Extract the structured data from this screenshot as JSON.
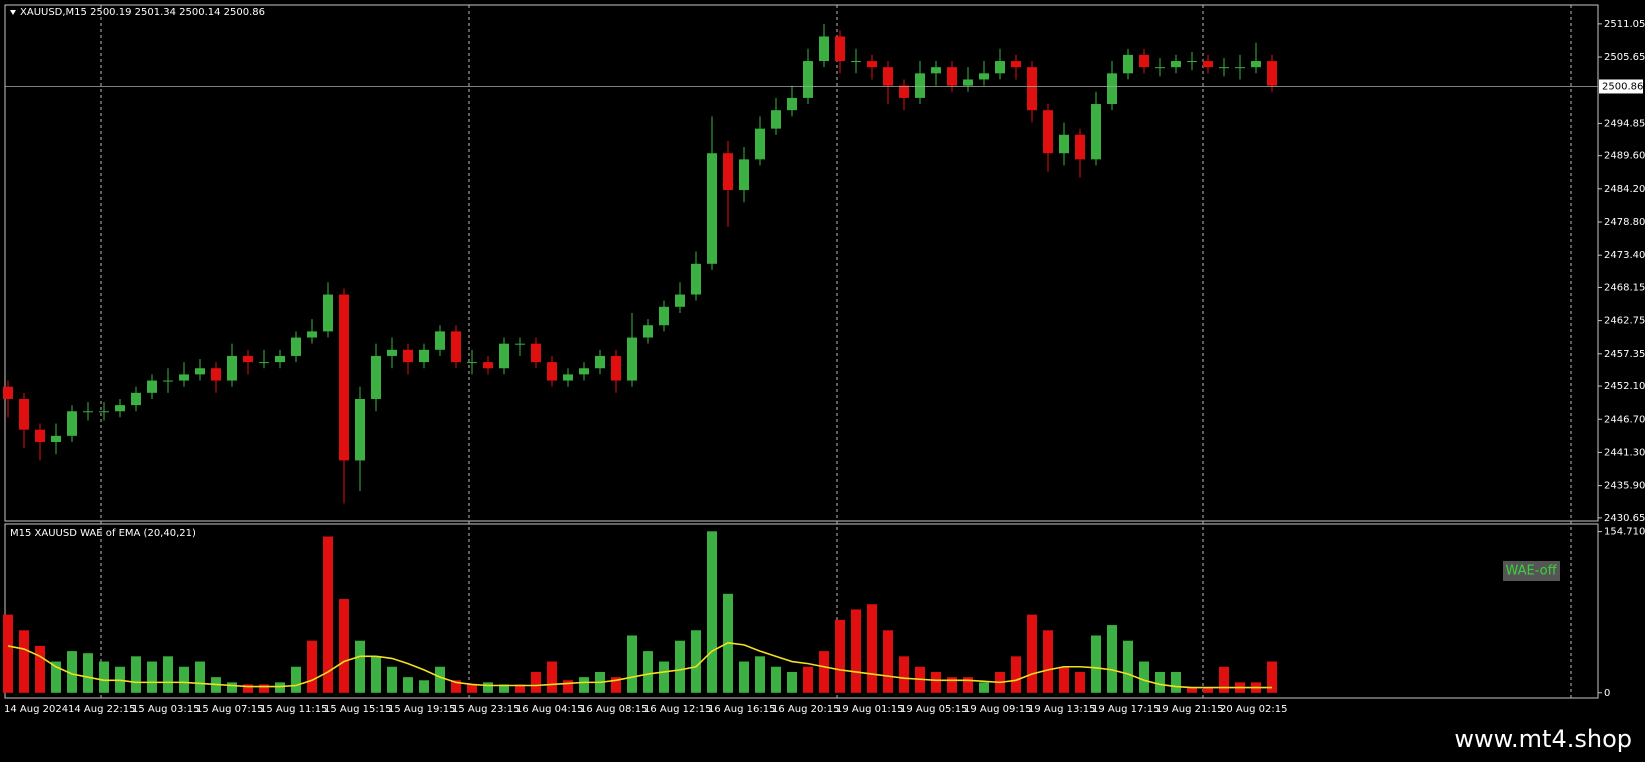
{
  "chart_data": [
    {
      "type": "candlestick",
      "title": "XAUUSD,M15  2500.19 2501.34 2500.14 2500.86",
      "categories": [
        "14 Aug 2024",
        null,
        null,
        null,
        "14 Aug 22:15",
        null,
        null,
        null,
        "15 Aug 03:15",
        null,
        null,
        null,
        "15 Aug 07:15",
        null,
        null,
        null,
        "15 Aug 11:15",
        null,
        null,
        null,
        "15 Aug 15:15",
        null,
        null,
        null,
        "15 Aug 19:15",
        null,
        null,
        null,
        "15 Aug 23:15",
        null,
        null,
        null,
        "16 Aug 04:15",
        null,
        null,
        null,
        "16 Aug 08:15",
        null,
        null,
        null,
        "16 Aug 12:15",
        null,
        null,
        null,
        "16 Aug 16:15",
        null,
        null,
        null,
        "16 Aug 20:15",
        null,
        null,
        null,
        "19 Aug 01:15",
        null,
        null,
        null,
        "19 Aug 05:15",
        null,
        null,
        null,
        "19 Aug 09:15",
        null,
        null,
        null,
        "19 Aug 13:15",
        null,
        null,
        null,
        "19 Aug 17:15",
        null,
        null,
        null,
        "19 Aug 21:15",
        null,
        null,
        null,
        "20 Aug 02:15",
        null,
        null,
        null
      ],
      "open": [
        2452,
        2450,
        2445,
        2443,
        2444,
        2448,
        2448,
        2448,
        2449,
        2451,
        2453,
        2453,
        2454,
        2455,
        2453,
        2457,
        2456,
        2456,
        2457,
        2460,
        2461,
        2467,
        2440,
        2450,
        2457,
        2458,
        2456,
        2458,
        2461,
        2456,
        2456,
        2455,
        2459,
        2459,
        2456,
        2453,
        2454,
        2455,
        2457,
        2453,
        2460,
        2462,
        2465,
        2467,
        2472,
        2490,
        2484,
        2489,
        2494,
        2497,
        2499,
        2505,
        2509,
        2505,
        2505,
        2504,
        2501,
        2499,
        2503,
        2504,
        2501,
        2502,
        2503,
        2505,
        2504,
        2497,
        2490,
        2493,
        2489,
        2498,
        2503,
        2506,
        2504,
        2504,
        2505,
        2505,
        2504,
        2504,
        2504,
        2505
      ],
      "high": [
        2453,
        2451,
        2446,
        2446,
        2449,
        2449.5,
        2449.5,
        2450,
        2452,
        2454,
        2455,
        2456,
        2456.5,
        2456,
        2459,
        2458,
        2458,
        2458,
        2461,
        2463,
        2469,
        2468,
        2452,
        2459,
        2460,
        2459,
        2459,
        2462,
        2462,
        2458,
        2457,
        2460,
        2460,
        2460,
        2457,
        2455,
        2456,
        2458,
        2458,
        2464,
        2463,
        2466,
        2469,
        2474,
        2496,
        2492,
        2491,
        2496,
        2499,
        2501,
        2507,
        2511,
        2510,
        2507,
        2506,
        2505,
        2502,
        2505,
        2505,
        2505,
        2504,
        2505,
        2507,
        2506,
        2505,
        2498,
        2495,
        2494,
        2500,
        2505,
        2507,
        2507,
        2505.5,
        2506,
        2506.5,
        2506,
        2505.5,
        2506,
        2508,
        2506
      ],
      "low": [
        2447,
        2442,
        2440,
        2441,
        2443,
        2446.5,
        2446.5,
        2447,
        2448,
        2450,
        2451,
        2452,
        2453,
        2451,
        2452,
        2454,
        2455,
        2455,
        2456,
        2459,
        2460,
        2433,
        2435,
        2448,
        2455,
        2454,
        2455,
        2457,
        2455,
        2454,
        2454,
        2454,
        2457,
        2455,
        2452,
        2452,
        2453,
        2454,
        2451,
        2452,
        2459,
        2461,
        2464,
        2466,
        2471,
        2478,
        2482,
        2488,
        2493,
        2496,
        2498,
        2504,
        2503,
        2503,
        2502,
        2498,
        2497,
        2498,
        2501,
        2500,
        2500,
        2501,
        2502,
        2502,
        2495,
        2487,
        2488,
        2486,
        2488,
        2497,
        2502,
        2503,
        2502.5,
        2503,
        2503.5,
        2503,
        2502.5,
        2502,
        2503,
        2500
      ],
      "close": [
        2450,
        2445,
        2443,
        2444,
        2448,
        2448,
        2448,
        2449,
        2451,
        2453,
        2453,
        2454,
        2455,
        2453,
        2457,
        2456,
        2456,
        2457,
        2460,
        2461,
        2467,
        2440,
        2450,
        2457,
        2458,
        2456,
        2458,
        2461,
        2456,
        2456,
        2455,
        2459,
        2459,
        2456,
        2453,
        2454,
        2455,
        2457,
        2453,
        2460,
        2462,
        2465,
        2467,
        2472,
        2490,
        2484,
        2489,
        2494,
        2497,
        2499,
        2505,
        2509,
        2505,
        2505,
        2504,
        2501,
        2499,
        2503,
        2504,
        2501,
        2502,
        2503,
        2505,
        2504,
        2497,
        2490,
        2493,
        2489,
        2498,
        2503,
        2506,
        2504,
        2504,
        2505,
        2505,
        2504,
        2504,
        2504,
        2505,
        2501
      ],
      "up_color": "#3cb043",
      "down_color": "#e01010",
      "last_price": 2500.86,
      "ylim": [
        2430.14,
        2514.12
      ],
      "yticks": [
        2511.05,
        2505.65,
        2494.85,
        {
          "value": 2489.6,
          "label": "2489.60"
        },
        {
          "value": 2484.2,
          "label": "2484.20"
        },
        {
          "value": 2478.8,
          "label": "2478.80"
        },
        {
          "value": 2473.4,
          "label": "2473.40"
        },
        2468.15,
        2462.75,
        2457.35,
        {
          "value": 2452.1,
          "label": "2452.10"
        },
        {
          "value": 2446.7,
          "label": "2446.70"
        },
        {
          "value": 2441.3,
          "label": "2441.30"
        },
        {
          "value": 2435.9,
          "label": "2435.90"
        },
        2430.65
      ]
    },
    {
      "type": "bar",
      "title": "M15 XAUUSD WAE of EMA (20,40,21)",
      "status": "WAE-off",
      "values": [
        75,
        60,
        45,
        30,
        40,
        38,
        30,
        25,
        35,
        30,
        35,
        25,
        30,
        15,
        10,
        8,
        8,
        10,
        25,
        50,
        150,
        90,
        50,
        35,
        25,
        15,
        12,
        25,
        12,
        8,
        10,
        8,
        8,
        20,
        30,
        12,
        15,
        20,
        15,
        55,
        40,
        30,
        50,
        60,
        155,
        95,
        30,
        35,
        25,
        20,
        25,
        40,
        70,
        80,
        85,
        60,
        35,
        25,
        20,
        15,
        15,
        10,
        20,
        35,
        75,
        60,
        25,
        20,
        55,
        65,
        50,
        30,
        20,
        20,
        5,
        5,
        25,
        10,
        10,
        30
      ],
      "bar_colors": [
        "#e01010",
        "#e01010",
        "#e01010",
        "#3cb043",
        "#3cb043",
        "#3cb043",
        "#3cb043",
        "#3cb043",
        "#3cb043",
        "#3cb043",
        "#3cb043",
        "#3cb043",
        "#3cb043",
        "#3cb043",
        "#3cb043",
        "#e01010",
        "#e01010",
        "#3cb043",
        "#3cb043",
        "#e01010",
        "#e01010",
        "#e01010",
        "#3cb043",
        "#3cb043",
        "#3cb043",
        "#3cb043",
        "#3cb043",
        "#3cb043",
        "#e01010",
        "#e01010",
        "#3cb043",
        "#3cb043",
        "#e01010",
        "#e01010",
        "#e01010",
        "#e01010",
        "#3cb043",
        "#3cb043",
        "#e01010",
        "#3cb043",
        "#3cb043",
        "#3cb043",
        "#3cb043",
        "#3cb043",
        "#3cb043",
        "#3cb043",
        "#3cb043",
        "#3cb043",
        "#3cb043",
        "#3cb043",
        "#e01010",
        "#e01010",
        "#e01010",
        "#e01010",
        "#e01010",
        "#e01010",
        "#e01010",
        "#e01010",
        "#e01010",
        "#e01010",
        "#e01010",
        "#3cb043",
        "#e01010",
        "#e01010",
        "#e01010",
        "#e01010",
        "#e01010",
        "#e01010",
        "#3cb043",
        "#3cb043",
        "#3cb043",
        "#3cb043",
        "#3cb043",
        "#3cb043",
        "#e01010",
        "#e01010",
        "#e01010",
        "#e01010",
        "#e01010",
        "#e01010"
      ],
      "signal": {
        "color": "#f0e020",
        "values": [
          45,
          42,
          35,
          25,
          18,
          15,
          12,
          12,
          10,
          10,
          10,
          10,
          9,
          8,
          7,
          6,
          6,
          6,
          7,
          12,
          20,
          30,
          35,
          35,
          33,
          28,
          22,
          15,
          10,
          8,
          7,
          7,
          7,
          7,
          8,
          9,
          10,
          10,
          12,
          15,
          18,
          20,
          22,
          25,
          40,
          48,
          46,
          40,
          35,
          30,
          28,
          25,
          22,
          20,
          18,
          16,
          14,
          13,
          12,
          12,
          12,
          11,
          10,
          12,
          18,
          22,
          25,
          25,
          24,
          22,
          18,
          12,
          8,
          6,
          5,
          5,
          5,
          5,
          5,
          5
        ]
      },
      "ylim": [
        -5,
        162
      ],
      "yticks": [
        0,
        154.7103
      ]
    }
  ],
  "footer": "www.mt4.shop"
}
